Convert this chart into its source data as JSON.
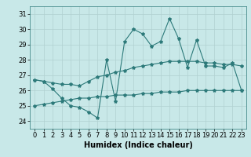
{
  "title": "",
  "xlabel": "Humidex (Indice chaleur)",
  "ylabel": "",
  "bg_color": "#c8e8e8",
  "line_color": "#2d7a7a",
  "grid_color": "#b0d0d0",
  "ylim": [
    23.5,
    31.5
  ],
  "xlim": [
    -0.5,
    23.5
  ],
  "yticks": [
    24,
    25,
    26,
    27,
    28,
    29,
    30,
    31
  ],
  "xticks": [
    0,
    1,
    2,
    3,
    4,
    5,
    6,
    7,
    8,
    9,
    10,
    11,
    12,
    13,
    14,
    15,
    16,
    17,
    18,
    19,
    20,
    21,
    22,
    23
  ],
  "main_line": [
    26.7,
    26.6,
    26.1,
    25.5,
    25.0,
    24.9,
    24.6,
    24.2,
    28.0,
    25.3,
    29.2,
    30.0,
    29.7,
    28.9,
    29.2,
    30.7,
    29.4,
    27.5,
    29.3,
    27.6,
    27.6,
    27.5,
    27.8,
    26.0
  ],
  "upper_line": [
    26.7,
    26.6,
    26.5,
    26.4,
    26.4,
    26.3,
    26.6,
    26.9,
    27.0,
    27.2,
    27.3,
    27.5,
    27.6,
    27.7,
    27.8,
    27.9,
    27.9,
    27.9,
    27.9,
    27.8,
    27.8,
    27.7,
    27.7,
    27.6
  ],
  "lower_line": [
    25.0,
    25.1,
    25.2,
    25.3,
    25.4,
    25.5,
    25.5,
    25.6,
    25.6,
    25.7,
    25.7,
    25.7,
    25.8,
    25.8,
    25.9,
    25.9,
    25.9,
    26.0,
    26.0,
    26.0,
    26.0,
    26.0,
    26.0,
    26.0
  ],
  "marker": "*",
  "markersize": 3,
  "linewidth": 0.8,
  "font_size": 6,
  "xlabel_fontsize": 7
}
